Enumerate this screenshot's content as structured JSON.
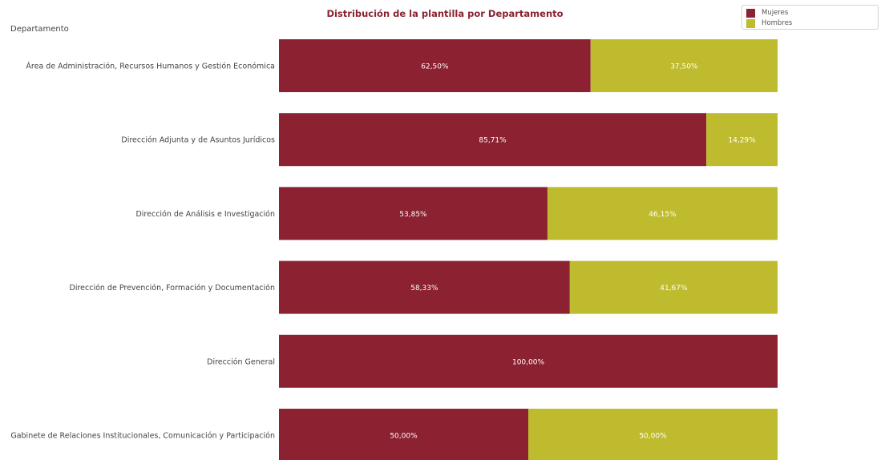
{
  "chart_data": {
    "type": "bar",
    "orientation": "horizontal",
    "stacked": true,
    "title": "Distribución de la plantilla por Departamento",
    "ylabel": "Departamento",
    "xlim": [
      0,
      100
    ],
    "grid": false,
    "legend_position": "top-right",
    "categories": [
      "Área de Administración, Recursos Humanos y Gestión Económica",
      "Dirección Adjunta y de Asuntos Jurídicos",
      "Dirección de Análisis e Investigación",
      "Dirección de Prevención, Formación y Documentación",
      "Dirección General",
      "Gabinete de Relaciones Institucionales, Comunicación y Participación"
    ],
    "series": [
      {
        "name": "Mujeres",
        "color": "#8b2131",
        "values": [
          62.5,
          85.71,
          53.85,
          58.33,
          100.0,
          50.0
        ],
        "labels": [
          "62,50%",
          "85,71%",
          "53,85%",
          "58,33%",
          "100,00%",
          "50,00%"
        ]
      },
      {
        "name": "Hombres",
        "color": "#bfbb2f",
        "values": [
          37.5,
          14.29,
          46.15,
          41.67,
          0,
          50.0
        ],
        "labels": [
          "37,50%",
          "14,29%",
          "46,15%",
          "41,67%",
          "",
          "50,00%"
        ]
      }
    ]
  }
}
